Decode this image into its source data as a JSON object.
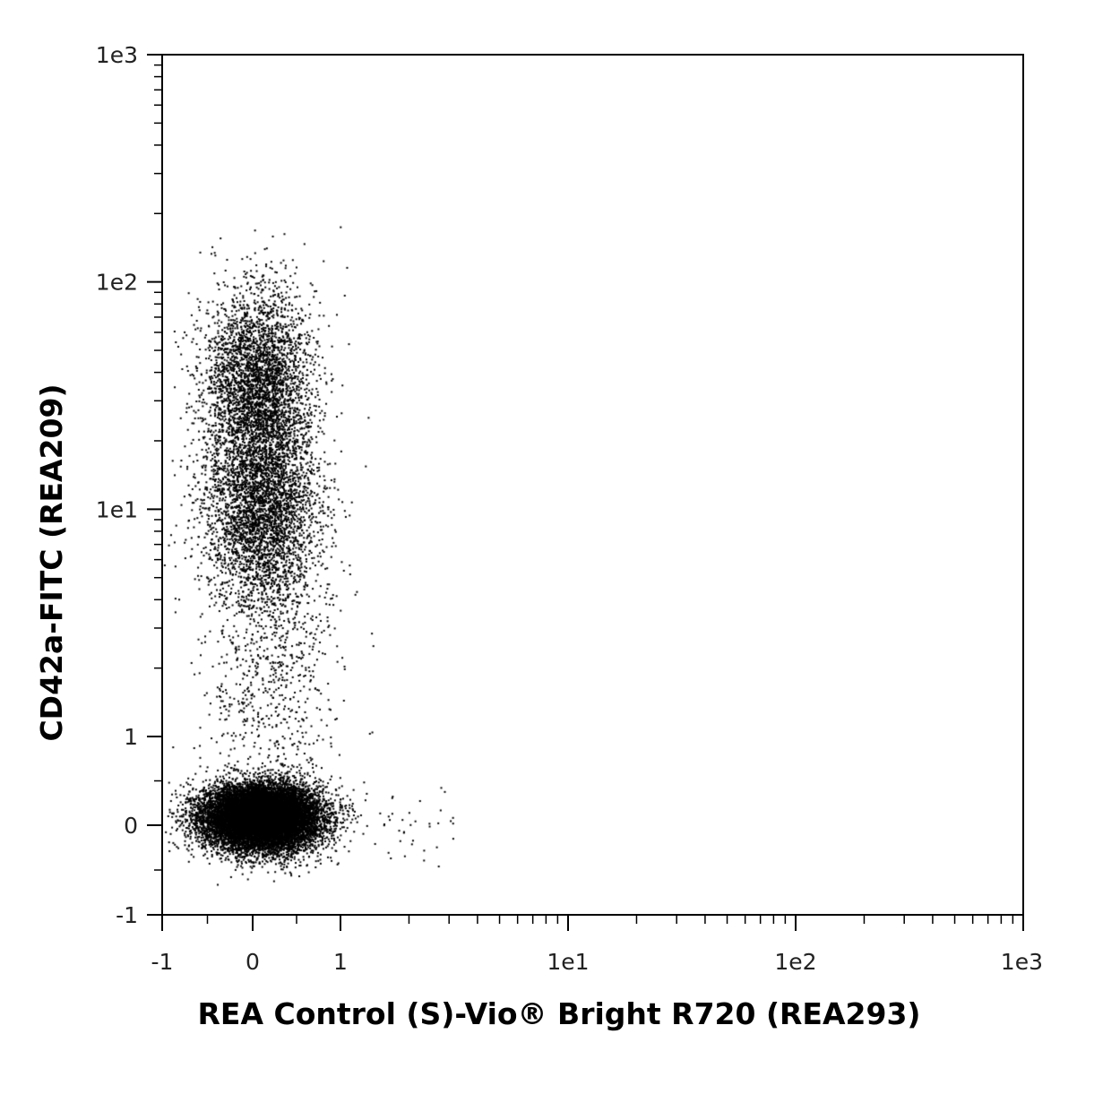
{
  "chart_data": {
    "type": "scatter",
    "style": "flow-cytometry-dot-plot",
    "scale": "biexponential",
    "xlabel": "REA Control (S)-Vio® Bright R720 (REA293)",
    "ylabel": "CD42a-FITC (REA209)",
    "xlim": [
      -1,
      1000
    ],
    "ylim": [
      -1,
      1000
    ],
    "x_ticks": [
      {
        "value": -1,
        "label": "-1"
      },
      {
        "value": 0,
        "label": "0"
      },
      {
        "value": 1,
        "label": "1"
      },
      {
        "value": 10,
        "label": "1e1"
      },
      {
        "value": 100,
        "label": "1e2"
      },
      {
        "value": 1000,
        "label": "1e3"
      }
    ],
    "y_ticks": [
      {
        "value": -1,
        "label": "-1"
      },
      {
        "value": 0,
        "label": "0"
      },
      {
        "value": 1,
        "label": "1"
      },
      {
        "value": 10,
        "label": "1e1"
      },
      {
        "value": 100,
        "label": "1e2"
      },
      {
        "value": 1000,
        "label": "1e3"
      }
    ],
    "grid": false,
    "legend": "none",
    "point_color": "#000000",
    "populations": [
      {
        "x_center": 0.1,
        "y_center": 0.1,
        "x_spread": 0.32,
        "y_spread": 0.18,
        "count": 15000
      },
      {
        "x_center": 0.05,
        "y_center": 35,
        "x_spread": 0.3,
        "y_spread_log10": 0.22,
        "count": 3500
      },
      {
        "x_center": 0.1,
        "y_center": 10,
        "x_spread": 0.32,
        "y_spread_log10": 0.22,
        "count": 3500
      },
      {
        "x_center": 0.2,
        "y_center": 2,
        "x_spread": 0.4,
        "y_spread_log10": 0.3,
        "count": 700
      }
    ]
  }
}
